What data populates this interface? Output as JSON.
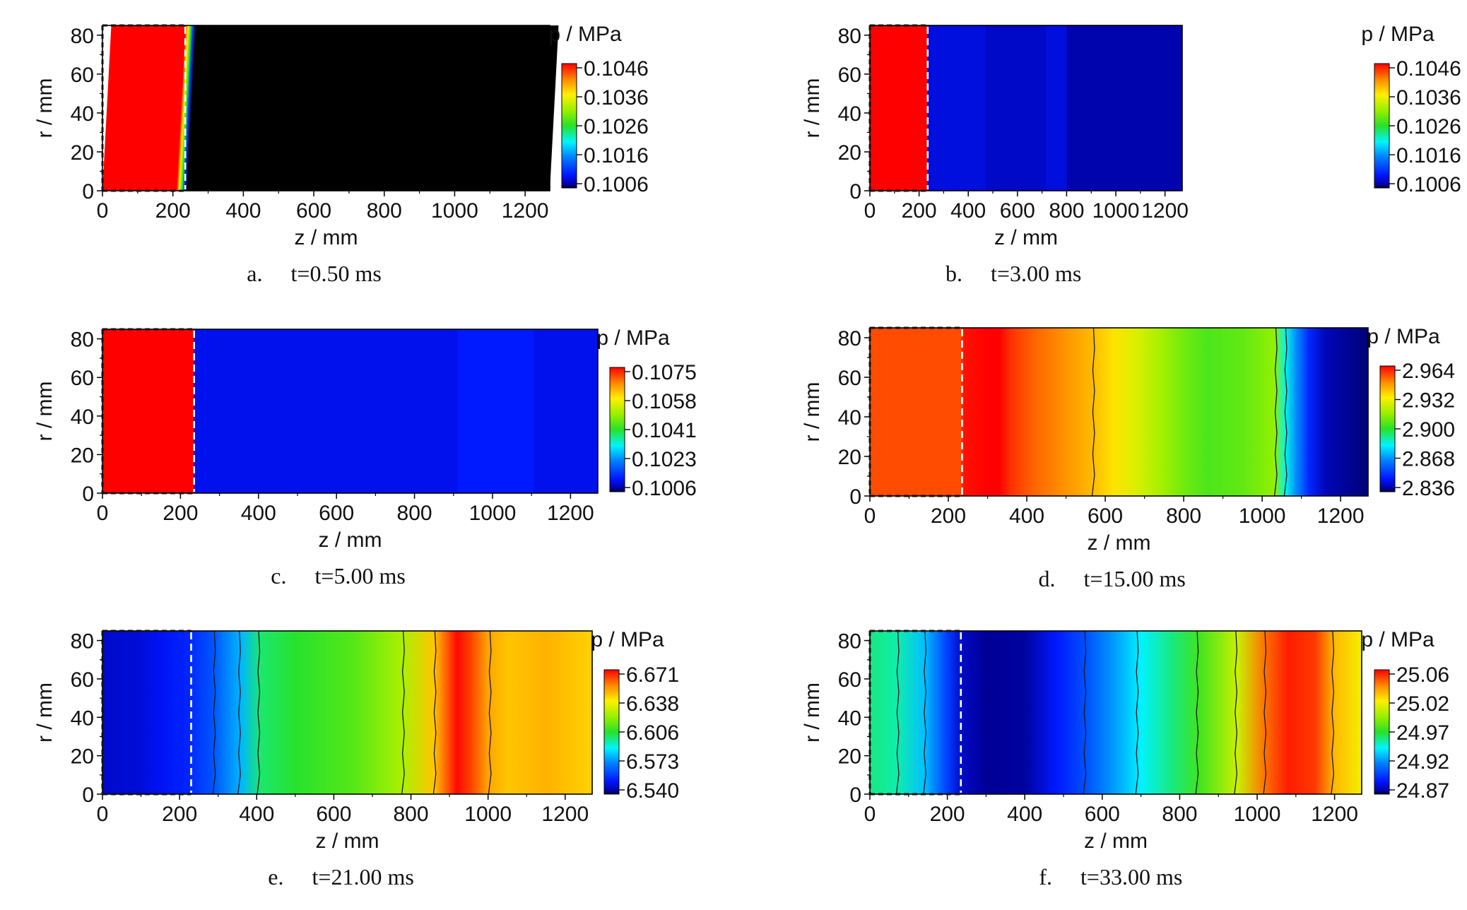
{
  "chart_data": [
    {
      "type": "heatmap",
      "panel_label": "a.",
      "time_label": "t=0.50 ms",
      "xlabel": "z / mm",
      "ylabel": "r / mm",
      "colorbar_title": "p / MPa",
      "xlim": [
        0,
        1270
      ],
      "ylim": [
        0,
        85
      ],
      "xticks": [
        "0",
        "200",
        "400",
        "600",
        "800",
        "1000",
        "1200"
      ],
      "yticks": [
        "0",
        "20",
        "40",
        "60",
        "80"
      ],
      "colorbar_ticks": [
        "0.1046",
        "0.1036",
        "0.1026",
        "0.1016",
        "0.1006"
      ],
      "value_range": [
        0.1006,
        0.1046
      ],
      "interface_z": 235,
      "chamber_end_z": 235,
      "field_profile": [
        [
          0,
          0.1046
        ],
        [
          210,
          0.1046
        ],
        [
          218,
          0.1036
        ],
        [
          226,
          0.1026
        ],
        [
          232,
          0.1012
        ],
        [
          240,
          0.1006
        ],
        [
          1270,
          0.1006
        ]
      ],
      "field_skew": 25,
      "contour_lines": []
    },
    {
      "type": "heatmap",
      "panel_label": "b.",
      "time_label": "t=3.00 ms",
      "xlabel": "z / mm",
      "ylabel": "r / mm",
      "colorbar_title": "p / MPa",
      "xlim": [
        0,
        1270
      ],
      "ylim": [
        0,
        85
      ],
      "xticks": [
        "0",
        "200",
        "400",
        "600",
        "800",
        "1000",
        "1200"
      ],
      "yticks": [
        "0",
        "20",
        "40",
        "60",
        "80"
      ],
      "colorbar_ticks": [
        "0.1046",
        "0.1036",
        "0.1026",
        "0.1016",
        "0.1006"
      ],
      "value_range": [
        0.1006,
        0.1046
      ],
      "interface_z": 235,
      "chamber_end_z": 235,
      "field_profile": [
        [
          0,
          0.1046
        ],
        [
          232,
          0.1046
        ],
        [
          238,
          0.1009
        ],
        [
          470,
          0.1009
        ],
        [
          471,
          0.10083
        ],
        [
          715,
          0.10083
        ],
        [
          716,
          0.1009
        ],
        [
          800,
          0.1009
        ],
        [
          801,
          0.10075
        ],
        [
          1270,
          0.10075
        ]
      ],
      "field_skew": 0,
      "contour_lines": []
    },
    {
      "type": "heatmap",
      "panel_label": "c.",
      "time_label": "t=5.00 ms",
      "xlabel": "z / mm",
      "ylabel": "r / mm",
      "colorbar_title": "p / MPa",
      "xlim": [
        0,
        1270
      ],
      "ylim": [
        0,
        85
      ],
      "xticks": [
        "0",
        "200",
        "400",
        "600",
        "800",
        "1000",
        "1200"
      ],
      "yticks": [
        "0",
        "20",
        "40",
        "60",
        "80"
      ],
      "colorbar_ticks": [
        "0.1075",
        "0.1058",
        "0.1041",
        "0.1023",
        "0.1006"
      ],
      "value_range": [
        0.1006,
        0.1075
      ],
      "interface_z": 235,
      "chamber_end_z": 235,
      "field_profile": [
        [
          0,
          0.1075
        ],
        [
          232,
          0.1075
        ],
        [
          238,
          0.1012
        ],
        [
          910,
          0.1012
        ],
        [
          911,
          0.10135
        ],
        [
          1105,
          0.10135
        ],
        [
          1106,
          0.1012
        ],
        [
          1270,
          0.1012
        ]
      ],
      "field_skew": 0,
      "contour_lines": []
    },
    {
      "type": "heatmap",
      "panel_label": "d.",
      "time_label": "t=15.00 ms",
      "xlabel": "z / mm",
      "ylabel": "r / mm",
      "colorbar_title": "p / MPa",
      "xlim": [
        0,
        1270
      ],
      "ylim": [
        0,
        85
      ],
      "xticks": [
        "0",
        "200",
        "400",
        "600",
        "800",
        "1000",
        "1200"
      ],
      "yticks": [
        "0",
        "20",
        "40",
        "60",
        "80"
      ],
      "colorbar_ticks": [
        "2.964",
        "2.932",
        "2.900",
        "2.868",
        "2.836"
      ],
      "value_range": [
        2.836,
        2.964
      ],
      "interface_z": 235,
      "chamber_end_z": 235,
      "field_profile": [
        [
          0,
          2.955
        ],
        [
          230,
          2.955
        ],
        [
          240,
          2.962
        ],
        [
          300,
          2.964
        ],
        [
          330,
          2.964
        ],
        [
          360,
          2.958
        ],
        [
          420,
          2.952
        ],
        [
          500,
          2.946
        ],
        [
          570,
          2.94
        ],
        [
          620,
          2.934
        ],
        [
          680,
          2.926
        ],
        [
          740,
          2.918
        ],
        [
          800,
          2.91
        ],
        [
          860,
          2.905
        ],
        [
          950,
          2.908
        ],
        [
          1030,
          2.915
        ],
        [
          1060,
          2.885
        ],
        [
          1090,
          2.868
        ],
        [
          1120,
          2.852
        ],
        [
          1160,
          2.842
        ],
        [
          1270,
          2.838
        ]
      ],
      "field_skew": 0,
      "contour_lines": [
        {
          "z": 570
        },
        {
          "z": 1035
        },
        {
          "z": 1060
        }
      ]
    },
    {
      "type": "heatmap",
      "panel_label": "e.",
      "time_label": "t=21.00 ms",
      "xlabel": "z / mm",
      "ylabel": "r / mm",
      "colorbar_title": "p / MPa",
      "xlim": [
        0,
        1270
      ],
      "ylim": [
        0,
        85
      ],
      "xticks": [
        "0",
        "200",
        "400",
        "600",
        "800",
        "1000",
        "1200"
      ],
      "yticks": [
        "0",
        "20",
        "40",
        "60",
        "80"
      ],
      "colorbar_ticks": [
        "6.671",
        "6.638",
        "6.606",
        "6.573",
        "6.540"
      ],
      "value_range": [
        6.54,
        6.671
      ],
      "interface_z": 230,
      "chamber_end_z": 230,
      "field_profile": [
        [
          0,
          6.548
        ],
        [
          90,
          6.549
        ],
        [
          150,
          6.552
        ],
        [
          220,
          6.556
        ],
        [
          290,
          6.565
        ],
        [
          360,
          6.58
        ],
        [
          410,
          6.6
        ],
        [
          500,
          6.605
        ],
        [
          650,
          6.612
        ],
        [
          780,
          6.625
        ],
        [
          860,
          6.645
        ],
        [
          920,
          6.67
        ],
        [
          960,
          6.662
        ],
        [
          1000,
          6.65
        ],
        [
          1050,
          6.645
        ],
        [
          1150,
          6.648
        ],
        [
          1270,
          6.643
        ]
      ],
      "field_skew": 0,
      "contour_lines": [
        {
          "z": 290
        },
        {
          "z": 355
        },
        {
          "z": 405
        },
        {
          "z": 780
        },
        {
          "z": 862
        },
        {
          "z": 1005
        }
      ]
    },
    {
      "type": "heatmap",
      "panel_label": "f.",
      "time_label": "t=33.00 ms",
      "xlabel": "z / mm",
      "ylabel": "r / mm",
      "colorbar_title": "p / MPa",
      "xlim": [
        0,
        1270
      ],
      "ylim": [
        0,
        85
      ],
      "xticks": [
        "0",
        "200",
        "400",
        "600",
        "800",
        "1000",
        "1200"
      ],
      "yticks": [
        "0",
        "20",
        "40",
        "60",
        "80"
      ],
      "colorbar_ticks": [
        "25.06",
        "25.02",
        "24.97",
        "24.92",
        "24.87"
      ],
      "value_range": [
        24.87,
        25.06
      ],
      "interface_z": 235,
      "chamber_end_z": 235,
      "field_profile": [
        [
          0,
          24.955
        ],
        [
          70,
          24.95
        ],
        [
          140,
          24.93
        ],
        [
          200,
          24.9
        ],
        [
          240,
          24.88
        ],
        [
          300,
          24.874
        ],
        [
          400,
          24.875
        ],
        [
          480,
          24.89
        ],
        [
          560,
          24.905
        ],
        [
          620,
          24.92
        ],
        [
          700,
          24.94
        ],
        [
          780,
          24.955
        ],
        [
          850,
          24.97
        ],
        [
          950,
          25.0
        ],
        [
          1020,
          25.04
        ],
        [
          1080,
          25.055
        ],
        [
          1150,
          25.05
        ],
        [
          1200,
          25.025
        ],
        [
          1270,
          25.01
        ]
      ],
      "field_skew": 0,
      "contour_lines": [
        {
          "z": 72
        },
        {
          "z": 142
        },
        {
          "z": 555
        },
        {
          "z": 690
        },
        {
          "z": 845
        },
        {
          "z": 945
        },
        {
          "z": 1020
        },
        {
          "z": 1195
        }
      ]
    }
  ]
}
